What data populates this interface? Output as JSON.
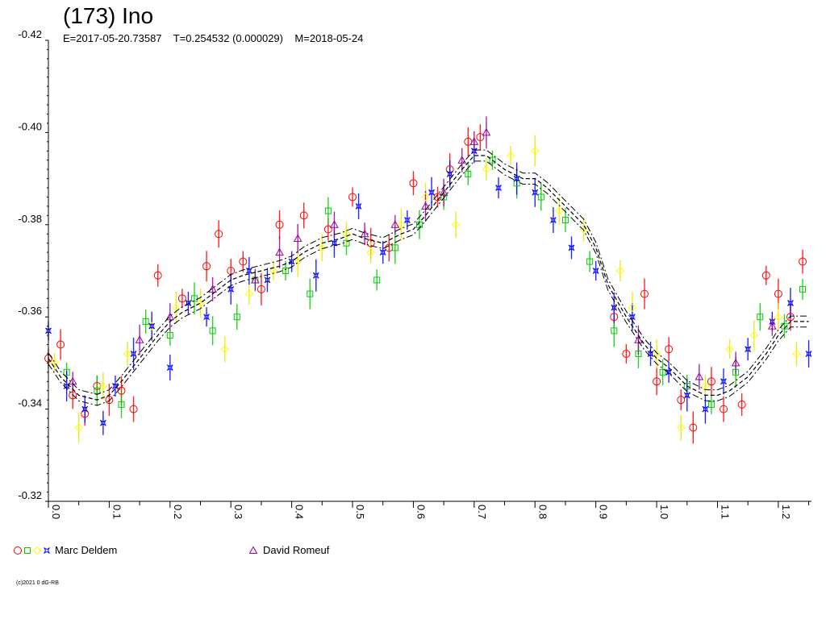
{
  "header": {
    "title": "(173) Ino",
    "subtitle": "E=2017-05-20.73587    T=0.254532 (0.000029)    M=2018-05-24"
  },
  "footer": {
    "copyright": "(c)2021 0 dG-RB"
  },
  "legend": [
    {
      "label": "Marc Deldem",
      "symbols": [
        "circle",
        "square",
        "diamond",
        "star"
      ],
      "colors": [
        "#ff0000",
        "#00cc00",
        "#ffff00",
        "#0000ff"
      ]
    },
    {
      "label": "David Romeuf",
      "symbols": [
        "triangle"
      ],
      "colors": [
        "#990099"
      ]
    }
  ],
  "chart_data": {
    "type": "scatter",
    "title": "(173) Ino",
    "xlim": [
      0,
      1.254532
    ],
    "ylim": [
      -0.42,
      -0.32
    ],
    "y_inverted": true,
    "x_ticks": [
      "0.0",
      "0.1",
      "0.2",
      "0.3",
      "0.4",
      "0.5",
      "0.6",
      "0.7",
      "0.8",
      "0.9",
      "1.0",
      "1.1",
      "1.2"
    ],
    "y_ticks": [
      "-0.42",
      "-0.40",
      "-0.38",
      "-0.36",
      "-0.34",
      "-0.32"
    ],
    "grid": false,
    "legend_position": "bottom",
    "fit_curve": {
      "x": [
        0.0,
        0.02,
        0.05,
        0.08,
        0.1,
        0.12,
        0.15,
        0.18,
        0.2,
        0.22,
        0.25,
        0.28,
        0.3,
        0.32,
        0.35,
        0.38,
        0.4,
        0.42,
        0.45,
        0.48,
        0.5,
        0.52,
        0.55,
        0.58,
        0.6,
        0.62,
        0.65,
        0.68,
        0.7,
        0.72,
        0.75,
        0.78,
        0.8,
        0.82,
        0.85,
        0.88,
        0.9,
        0.92,
        0.95,
        0.98,
        1.0,
        1.02,
        1.05,
        1.08,
        1.1,
        1.12,
        1.15,
        1.18,
        1.2,
        1.22,
        1.25
      ],
      "y": [
        -0.351,
        -0.347,
        -0.343,
        -0.342,
        -0.343,
        -0.346,
        -0.351,
        -0.356,
        -0.359,
        -0.361,
        -0.363,
        -0.366,
        -0.368,
        -0.369,
        -0.37,
        -0.371,
        -0.372,
        -0.374,
        -0.376,
        -0.377,
        -0.378,
        -0.377,
        -0.376,
        -0.378,
        -0.379,
        -0.382,
        -0.387,
        -0.392,
        -0.395,
        -0.395,
        -0.392,
        -0.39,
        -0.39,
        -0.388,
        -0.384,
        -0.38,
        -0.375,
        -0.367,
        -0.36,
        -0.354,
        -0.351,
        -0.349,
        -0.345,
        -0.343,
        -0.343,
        -0.344,
        -0.347,
        -0.352,
        -0.356,
        -0.359,
        -0.359
      ]
    },
    "series": [
      {
        "name": "Marc Deldem",
        "marker": "circle",
        "color": "#ff0000",
        "x": [
          0.0,
          0.02,
          0.04,
          0.06,
          0.08,
          0.1,
          0.12,
          0.14,
          0.18,
          0.22,
          0.26,
          0.28,
          0.3,
          0.32,
          0.35,
          0.38,
          0.42,
          0.46,
          0.5,
          0.53,
          0.56,
          0.6,
          0.64,
          0.66,
          0.69,
          0.71,
          0.93,
          0.95,
          0.98,
          1.0,
          1.02,
          1.04,
          1.06,
          1.09,
          1.11,
          1.14,
          1.18,
          1.2,
          1.22,
          1.24
        ],
        "y": [
          -0.351,
          -0.354,
          -0.343,
          -0.339,
          -0.345,
          -0.342,
          -0.344,
          -0.34,
          -0.369,
          -0.364,
          -0.371,
          -0.378,
          -0.37,
          -0.372,
          -0.366,
          -0.38,
          -0.382,
          -0.379,
          -0.386,
          -0.376,
          -0.375,
          -0.389,
          -0.386,
          -0.392,
          -0.398,
          -0.399,
          -0.36,
          -0.352,
          -0.365,
          -0.346,
          -0.353,
          -0.342,
          -0.336,
          -0.346,
          -0.34,
          -0.341,
          -0.369,
          -0.365,
          -0.36,
          -0.372
        ]
      },
      {
        "name": "Marc Deldem",
        "marker": "square",
        "color": "#00cc00",
        "x": [
          0.03,
          0.08,
          0.12,
          0.16,
          0.2,
          0.24,
          0.27,
          0.31,
          0.34,
          0.39,
          0.43,
          0.46,
          0.49,
          0.54,
          0.57,
          0.61,
          0.65,
          0.69,
          0.73,
          0.77,
          0.81,
          0.85,
          0.89,
          0.93,
          0.97,
          1.01,
          1.05,
          1.09,
          1.13,
          1.17,
          1.21,
          1.24
        ],
        "y": [
          -0.348,
          -0.344,
          -0.341,
          -0.359,
          -0.356,
          -0.364,
          -0.357,
          -0.36,
          -0.368,
          -0.37,
          -0.365,
          -0.383,
          -0.376,
          -0.368,
          -0.375,
          -0.38,
          -0.386,
          -0.391,
          -0.394,
          -0.389,
          -0.386,
          -0.381,
          -0.372,
          -0.357,
          -0.352,
          -0.348,
          -0.345,
          -0.341,
          -0.348,
          -0.36,
          -0.358,
          -0.366
        ]
      },
      {
        "name": "Marc Deldem",
        "marker": "diamond",
        "color": "#ffff00",
        "x": [
          0.01,
          0.05,
          0.09,
          0.13,
          0.17,
          0.21,
          0.25,
          0.29,
          0.33,
          0.37,
          0.41,
          0.45,
          0.49,
          0.53,
          0.58,
          0.62,
          0.67,
          0.72,
          0.76,
          0.8,
          0.84,
          0.88,
          0.94,
          0.96,
          1.0,
          1.04,
          1.08,
          1.12,
          1.16,
          1.2,
          1.23
        ],
        "y": [
          -0.35,
          -0.336,
          -0.345,
          -0.352,
          -0.358,
          -0.362,
          -0.363,
          -0.353,
          -0.365,
          -0.37,
          -0.372,
          -0.375,
          -0.378,
          -0.374,
          -0.38,
          -0.386,
          -0.38,
          -0.392,
          -0.395,
          -0.396,
          -0.383,
          -0.379,
          -0.37,
          -0.362,
          -0.352,
          -0.336,
          -0.345,
          -0.353,
          -0.356,
          -0.36,
          -0.352
        ]
      },
      {
        "name": "Marc Deldem",
        "marker": "star",
        "color": "#0000ff",
        "x": [
          0.0,
          0.03,
          0.06,
          0.09,
          0.11,
          0.14,
          0.17,
          0.2,
          0.23,
          0.26,
          0.3,
          0.33,
          0.36,
          0.4,
          0.44,
          0.47,
          0.51,
          0.55,
          0.59,
          0.63,
          0.66,
          0.7,
          0.74,
          0.77,
          0.8,
          0.83,
          0.86,
          0.9,
          0.93,
          0.96,
          0.99,
          1.02,
          1.05,
          1.08,
          1.11,
          1.15,
          1.19,
          1.22,
          1.25
        ],
        "y": [
          -0.357,
          -0.345,
          -0.34,
          -0.337,
          -0.345,
          -0.352,
          -0.358,
          -0.349,
          -0.363,
          -0.36,
          -0.366,
          -0.37,
          -0.368,
          -0.372,
          -0.369,
          -0.376,
          -0.384,
          -0.374,
          -0.381,
          -0.387,
          -0.391,
          -0.396,
          -0.388,
          -0.39,
          -0.387,
          -0.381,
          -0.375,
          -0.37,
          -0.362,
          -0.36,
          -0.352,
          -0.348,
          -0.343,
          -0.34,
          -0.346,
          -0.353,
          -0.359,
          -0.363,
          -0.352
        ]
      },
      {
        "name": "David Romeuf",
        "marker": "triangle",
        "color": "#990099",
        "x": [
          0.04,
          0.15,
          0.2,
          0.27,
          0.34,
          0.38,
          0.41,
          0.47,
          0.52,
          0.57,
          0.62,
          0.65,
          0.68,
          0.7,
          0.72,
          0.97,
          1.07,
          1.13,
          1.19
        ],
        "y": [
          -0.346,
          -0.355,
          -0.36,
          -0.366,
          -0.368,
          -0.374,
          -0.377,
          -0.38,
          -0.378,
          -0.38,
          -0.384,
          -0.387,
          -0.394,
          -0.398,
          -0.4,
          -0.355,
          -0.347,
          -0.35,
          -0.358
        ]
      }
    ]
  }
}
